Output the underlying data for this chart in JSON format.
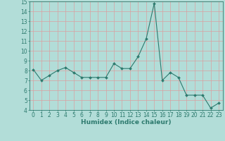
{
  "x": [
    0,
    1,
    2,
    3,
    4,
    5,
    6,
    7,
    8,
    9,
    10,
    11,
    12,
    13,
    14,
    15,
    16,
    17,
    18,
    19,
    20,
    21,
    22,
    23
  ],
  "y": [
    8.1,
    7.0,
    7.5,
    8.0,
    8.3,
    7.8,
    7.3,
    7.3,
    7.3,
    7.3,
    8.7,
    8.2,
    8.2,
    9.4,
    11.2,
    14.8,
    7.0,
    7.8,
    7.3,
    5.5,
    5.5,
    5.5,
    4.2,
    4.7
  ],
  "line_color": "#2d7a6e",
  "marker": "D",
  "marker_size": 2.0,
  "bg_color": "#b2ddd8",
  "grid_color": "#d9a0a0",
  "xlabel": "Humidex (Indice chaleur)",
  "xlim": [
    -0.5,
    23.5
  ],
  "ylim": [
    4,
    15
  ],
  "yticks": [
    4,
    5,
    6,
    7,
    8,
    9,
    10,
    11,
    12,
    13,
    14,
    15
  ],
  "xticks": [
    0,
    1,
    2,
    3,
    4,
    5,
    6,
    7,
    8,
    9,
    10,
    11,
    12,
    13,
    14,
    15,
    16,
    17,
    18,
    19,
    20,
    21,
    22,
    23
  ],
  "tick_color": "#2d7a6e",
  "label_fontsize": 6.5,
  "tick_fontsize": 5.5
}
